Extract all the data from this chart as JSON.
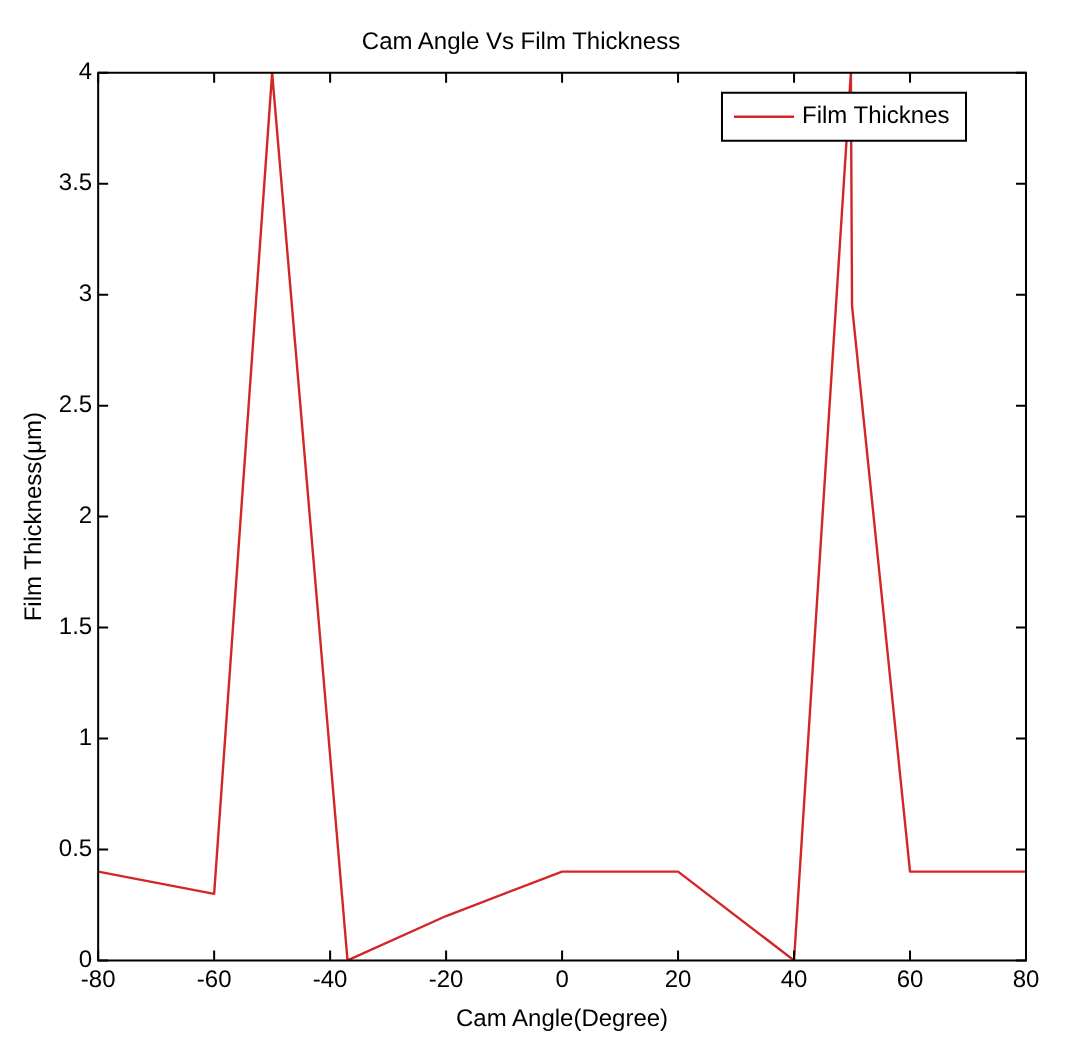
{
  "chart_data": {
    "type": "line",
    "title": "Cam Angle Vs Film Thickness",
    "xlabel": "Cam Angle(Degree)",
    "ylabel": "Film Thickness(μm)",
    "x": [
      -80,
      -60,
      -50,
      -37,
      -20,
      0,
      20,
      40,
      49.8,
      50,
      60,
      80
    ],
    "series": [
      {
        "name": "Film Thicknes",
        "color": "#d42626",
        "values": [
          0.4,
          0.3,
          4,
          0,
          0.2,
          0.4,
          0.4,
          0,
          4,
          2.95,
          0.4,
          0.4
        ]
      }
    ],
    "xlim": [
      -80,
      80
    ],
    "xticks": [
      -80,
      -60,
      -40,
      -20,
      0,
      20,
      40,
      60,
      80
    ],
    "ylim": [
      0,
      4
    ],
    "yticks": [
      0,
      0.5,
      1,
      1.5,
      2,
      2.5,
      3,
      3.5,
      4
    ],
    "legend": "top right",
    "marker": "none",
    "line_style": "solid"
  }
}
